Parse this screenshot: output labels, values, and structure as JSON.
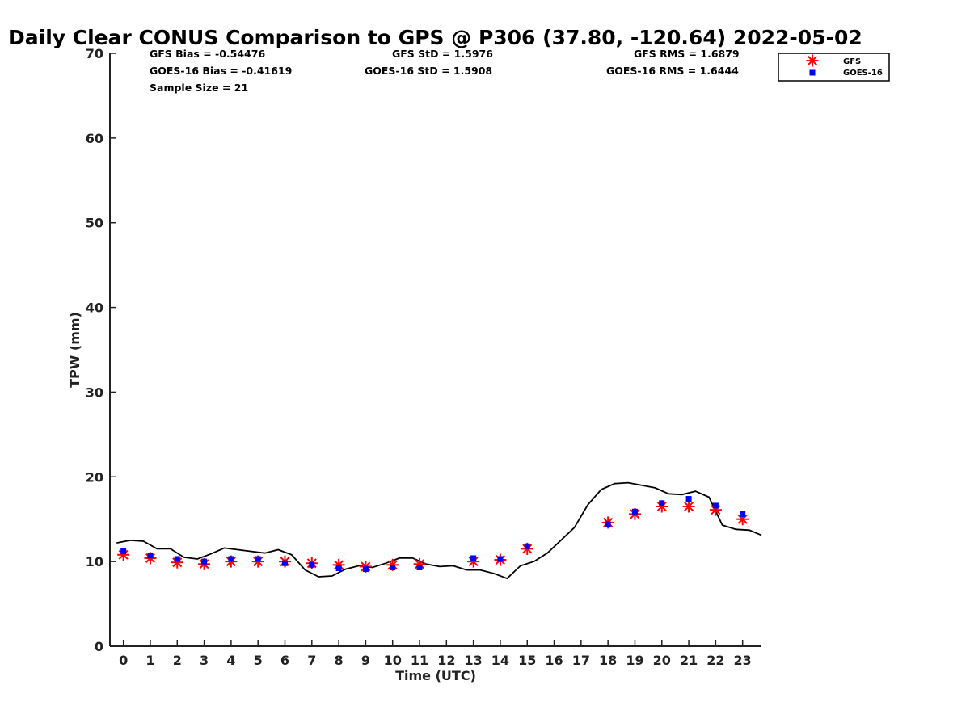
{
  "chart_data": {
    "type": "scatter",
    "title": "Daily Clear CONUS Comparison to GPS @ P306 (37.80, -120.64) 2022-05-02",
    "xlabel": "Time (UTC)",
    "ylabel": "TPW (mm)",
    "xlim": [
      -0.5,
      23.7
    ],
    "ylim": [
      0,
      70
    ],
    "xticks": [
      0,
      1,
      2,
      3,
      4,
      5,
      6,
      7,
      8,
      9,
      10,
      11,
      12,
      13,
      14,
      15,
      16,
      17,
      18,
      19,
      20,
      21,
      22,
      23
    ],
    "yticks": [
      0,
      10,
      20,
      30,
      40,
      50,
      60,
      70
    ],
    "grid": false,
    "legend_position": "outside-top-right",
    "stats": {
      "gfs_bias": "GFS Bias = -0.54476",
      "gfs_std": "GFS StD = 1.5976",
      "gfs_rms": "GFS RMS = 1.6879",
      "goes_bias": "GOES-16 Bias = -0.41619",
      "goes_std": "GOES-16 StD = 1.5908",
      "goes_rms": "GOES-16 RMS = 1.6444",
      "sample": "Sample Size = 21"
    },
    "series": [
      {
        "name": "GFS",
        "marker": "asterisk",
        "color": "#ff0000",
        "x": [
          0,
          1,
          2,
          3,
          4,
          5,
          6,
          7,
          8,
          9,
          10,
          11,
          13,
          14,
          15,
          18,
          19,
          20,
          21,
          22,
          23
        ],
        "y": [
          10.8,
          10.4,
          9.9,
          9.7,
          10.0,
          10.0,
          10.0,
          9.8,
          9.6,
          9.4,
          9.6,
          9.7,
          10.0,
          10.2,
          11.5,
          14.6,
          15.6,
          16.5,
          16.5,
          16.1,
          15.0
        ]
      },
      {
        "name": "GOES-16",
        "marker": "square",
        "color": "#0000ff",
        "x": [
          0,
          1,
          2,
          3,
          4,
          5,
          6,
          7,
          8,
          9,
          10,
          11,
          13,
          14,
          15,
          18,
          19,
          20,
          21,
          22,
          23
        ],
        "y": [
          11.2,
          10.7,
          10.3,
          10.0,
          10.3,
          10.3,
          9.8,
          9.6,
          9.2,
          9.1,
          9.3,
          9.3,
          10.4,
          10.3,
          11.8,
          14.4,
          15.9,
          16.9,
          17.4,
          16.6,
          15.6
        ]
      },
      {
        "name": "GPS",
        "marker": "line",
        "color": "#000000",
        "x": [
          -0.25,
          0.25,
          0.75,
          1.25,
          1.75,
          2.25,
          2.75,
          3.25,
          3.75,
          4.25,
          4.75,
          5.25,
          5.75,
          6.25,
          6.75,
          7.25,
          7.75,
          8.25,
          8.75,
          9.25,
          9.75,
          10.25,
          10.75,
          11.25,
          11.75,
          12.25,
          12.75,
          13.25,
          13.75,
          14.25,
          14.75,
          15.25,
          15.75,
          16.25,
          16.75,
          17.25,
          17.75,
          18.25,
          18.75,
          19.25,
          19.75,
          20.25,
          20.75,
          21.25,
          21.75,
          22.25,
          22.75,
          23.25,
          23.7
        ],
        "y": [
          12.2,
          12.5,
          12.4,
          11.5,
          11.5,
          10.5,
          10.3,
          10.9,
          11.6,
          11.4,
          11.2,
          11.0,
          11.4,
          10.8,
          9.0,
          8.2,
          8.3,
          9.1,
          9.5,
          9.3,
          9.8,
          10.4,
          10.4,
          9.7,
          9.4,
          9.5,
          9.0,
          9.0,
          8.6,
          8.0,
          9.5,
          10.0,
          11.0,
          12.5,
          14.0,
          16.7,
          18.5,
          19.2,
          19.3,
          19.0,
          18.7,
          18.0,
          17.9,
          18.3,
          17.6,
          14.3,
          13.8,
          13.7,
          13.1
        ]
      }
    ]
  }
}
